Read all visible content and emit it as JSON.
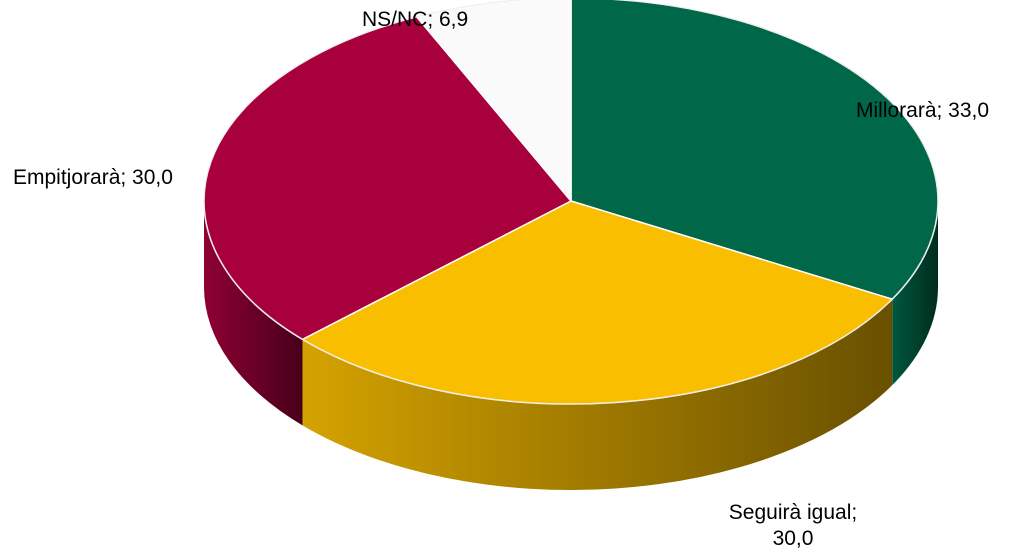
{
  "chart_data": {
    "type": "pie",
    "title": "",
    "slices": [
      {
        "label": "Millorarà",
        "value": 33.0,
        "value_text": "33,0",
        "color": "#006848"
      },
      {
        "label": "Seguirà igual",
        "value": 30.0,
        "value_text": "30,0",
        "color": "#F9BE00"
      },
      {
        "label": "Empitjorarà",
        "value": 30.0,
        "value_text": "30,0",
        "color": "#A8003C"
      },
      {
        "label": "NS/NC",
        "value": 6.9,
        "value_text": "6,9",
        "color": "#FAFAFA"
      }
    ],
    "data_labels": [
      {
        "text": "Millorarà; 33,0"
      },
      {
        "text": "Seguirà igual;",
        "text2": "30,0"
      },
      {
        "text": "Empitjorarà; 30,0"
      },
      {
        "text": "NS/NC; 6,9"
      }
    ],
    "style": "3d-pie",
    "legend": "none"
  }
}
